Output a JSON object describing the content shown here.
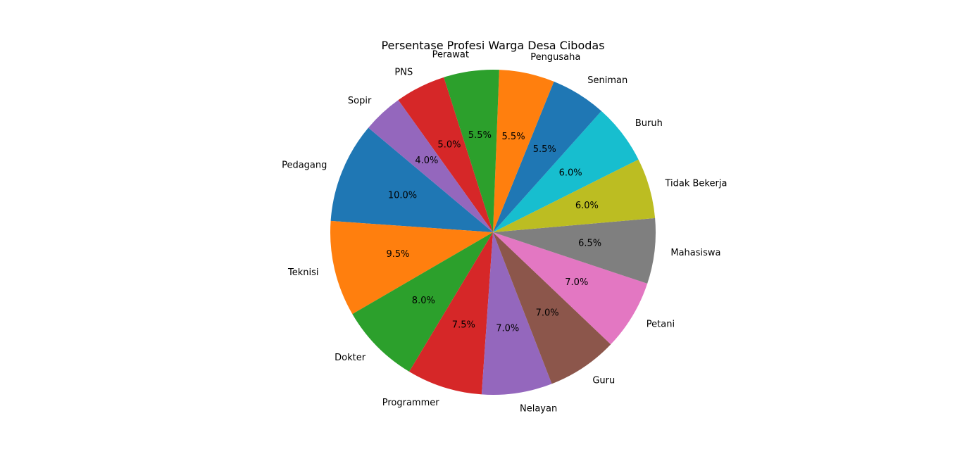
{
  "chart_data": {
    "type": "pie",
    "title": "Persentase Profesi Warga Desa Cibodas",
    "categories": [
      "Pedagang",
      "Teknisi",
      "Dokter",
      "Programmer",
      "Nelayan",
      "Guru",
      "Petani",
      "Mahasiswa",
      "Tidak Bekerja",
      "Buruh",
      "Seniman",
      "Pengusaha",
      "Perawat",
      "PNS",
      "Sopir"
    ],
    "values": [
      10.0,
      9.5,
      8.0,
      7.5,
      7.0,
      7.0,
      7.0,
      6.5,
      6.0,
      6.0,
      5.5,
      5.5,
      5.5,
      5.0,
      4.0
    ],
    "value_labels": [
      "10.0%",
      "9.5%",
      "8.0%",
      "7.5%",
      "7.0%",
      "7.0%",
      "7.0%",
      "6.5%",
      "6.0%",
      "6.0%",
      "5.5%",
      "5.5%",
      "5.5%",
      "5.0%",
      "4.0%"
    ],
    "colors": [
      "#1f77b4",
      "#ff7f0e",
      "#2ca02c",
      "#d62728",
      "#9467bd",
      "#8c564b",
      "#e377c2",
      "#7f7f7f",
      "#bcbd22",
      "#17becf",
      "#1f77b4",
      "#ff7f0e",
      "#2ca02c",
      "#d62728",
      "#9467bd"
    ],
    "start_angle_deg": 140,
    "direction": "counterclockwise"
  }
}
